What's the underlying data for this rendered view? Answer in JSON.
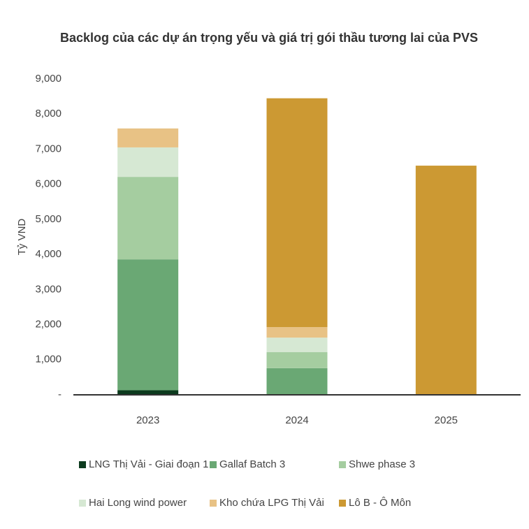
{
  "chart_data": {
    "type": "stacked-bar",
    "title": "Backlog của các dự án trọng yếu và giá trị gói thầu tương lai của PVS",
    "y_label": "Tỷ VND",
    "categories": [
      "2023",
      "2024",
      "2025"
    ],
    "series": [
      {
        "name": "LNG Thị Vải - Giai đoạn 1",
        "color": "#0d3b1e",
        "values": [
          130,
          20,
          0
        ]
      },
      {
        "name": "Gallaf Batch 3",
        "color": "#6aa874",
        "values": [
          3730,
          740,
          0
        ]
      },
      {
        "name": "Shwe phase 3",
        "color": "#a5cda0",
        "values": [
          2350,
          460,
          0
        ]
      },
      {
        "name": "Hai Long wind power",
        "color": "#d6e8d3",
        "values": [
          840,
          410,
          0
        ]
      },
      {
        "name": "Kho chứa LPG Thị Vải",
        "color": "#e8c285",
        "values": [
          540,
          300,
          0
        ]
      },
      {
        "name": "Lô B - Ô Môn",
        "color": "#cc9933",
        "values": [
          0,
          6520,
          6530
        ]
      }
    ],
    "ylim": [
      0,
      9000
    ],
    "yticks": [
      {
        "value": 0,
        "label": "-"
      },
      {
        "value": 1000,
        "label": "1,000"
      },
      {
        "value": 2000,
        "label": "2,000"
      },
      {
        "value": 3000,
        "label": "3,000"
      },
      {
        "value": 4000,
        "label": "4,000"
      },
      {
        "value": 5000,
        "label": "5,000"
      },
      {
        "value": 6000,
        "label": "6,000"
      },
      {
        "value": 7000,
        "label": "7,000"
      },
      {
        "value": 8000,
        "label": "8,000"
      },
      {
        "value": 9000,
        "label": "9,000"
      }
    ]
  }
}
